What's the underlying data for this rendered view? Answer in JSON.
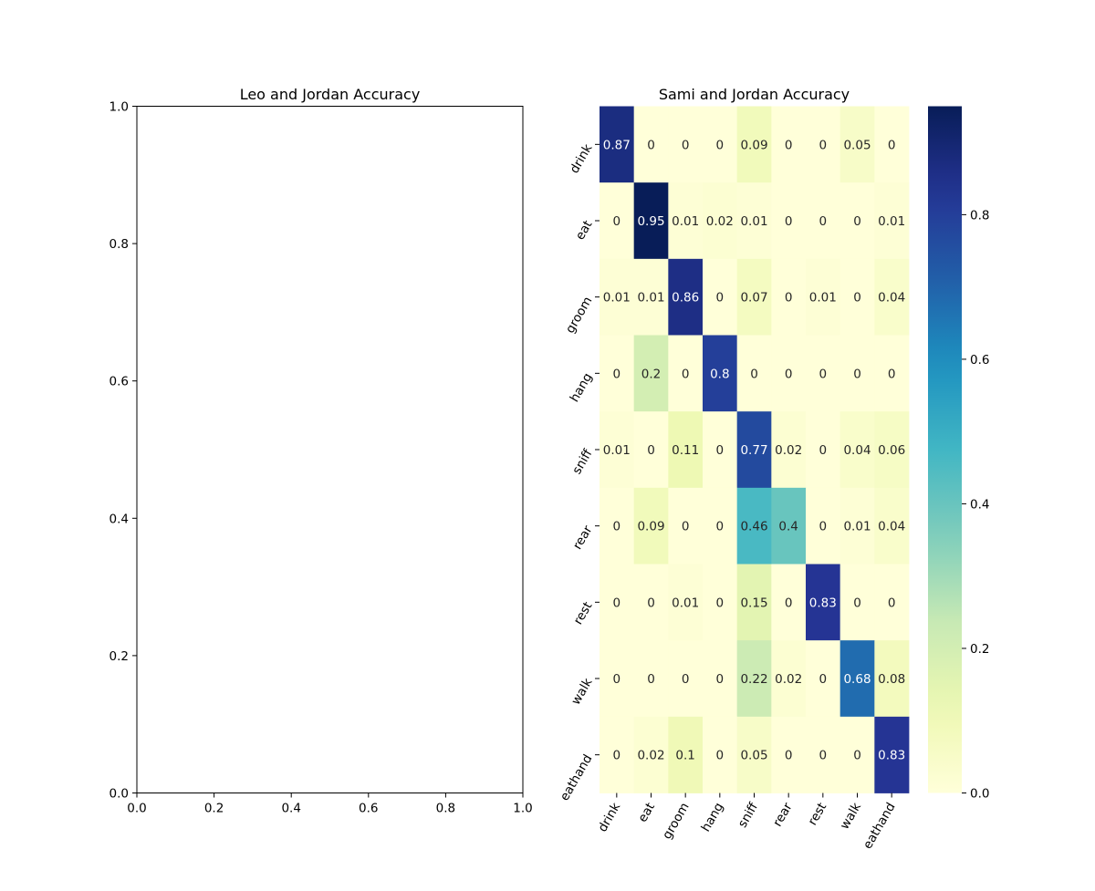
{
  "chart_data": [
    {
      "type": "line",
      "title": "Leo and Jordan Accuracy",
      "xlabel": "",
      "ylabel": "",
      "xlim": [
        0,
        1
      ],
      "ylim": [
        0,
        1
      ],
      "xticks": [
        "0.0",
        "0.2",
        "0.4",
        "0.6",
        "0.8",
        "1.0"
      ],
      "yticks": [
        "0.0",
        "0.2",
        "0.4",
        "0.6",
        "0.8",
        "1.0"
      ],
      "series": []
    },
    {
      "type": "heatmap",
      "title": "Sami and Jordan Accuracy",
      "rows": [
        "drink",
        "eat",
        "groom",
        "hang",
        "sniff",
        "rear",
        "rest",
        "walk",
        "eathand"
      ],
      "columns": [
        "drink",
        "eat",
        "groom",
        "hang",
        "sniff",
        "rear",
        "rest",
        "walk",
        "eathand"
      ],
      "values": [
        [
          0.87,
          0,
          0,
          0,
          0.09,
          0,
          0,
          0.05,
          0
        ],
        [
          0,
          0.95,
          0.01,
          0.02,
          0.01,
          0,
          0,
          0,
          0.01
        ],
        [
          0.01,
          0.01,
          0.86,
          0,
          0.07,
          0,
          0.01,
          0,
          0.04
        ],
        [
          0,
          0.2,
          0,
          0.8,
          0,
          0,
          0,
          0,
          0
        ],
        [
          0.01,
          0,
          0.11,
          0,
          0.77,
          0.02,
          0,
          0.04,
          0.06
        ],
        [
          0,
          0.09,
          0,
          0,
          0.46,
          0.4,
          0,
          0.01,
          0.04
        ],
        [
          0,
          0,
          0.01,
          0,
          0.15,
          0,
          0.83,
          0,
          0
        ],
        [
          0,
          0,
          0,
          0,
          0.22,
          0.02,
          0,
          0.68,
          0.08
        ],
        [
          0,
          0.02,
          0.1,
          0,
          0.05,
          0,
          0,
          0,
          0.83
        ]
      ],
      "colormap": "YlGnBu",
      "vmin": 0,
      "vmax": 0.95,
      "colorbar_ticks": [
        "0.0",
        "0.2",
        "0.4",
        "0.6",
        "0.8"
      ],
      "annotations": true
    }
  ]
}
